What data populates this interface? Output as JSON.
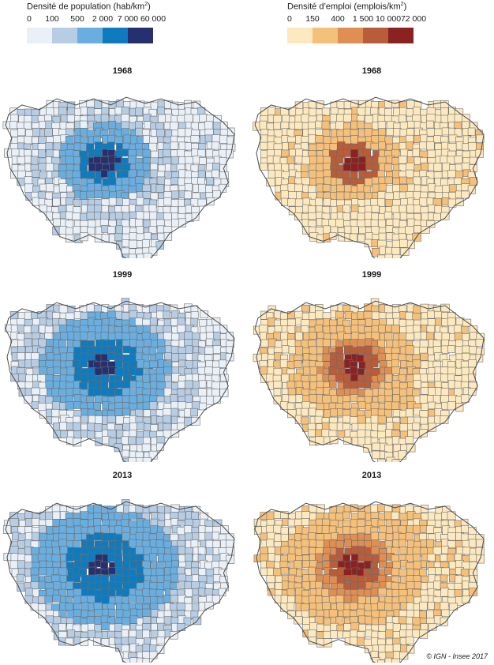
{
  "legends": {
    "population": {
      "title": "Densité de population (hab/km",
      "title_sup": "2",
      "title_end": ")",
      "ticks": [
        "0",
        "100",
        "500",
        "2 000",
        "7 000",
        "60 000"
      ],
      "colors": [
        "#e9f0f7",
        "#b7cde4",
        "#6aaee0",
        "#0f7bbf",
        "#27306f"
      ]
    },
    "emploi": {
      "title": "Densité d’emploi (emplois/km",
      "title_sup": "2",
      "title_end": ")",
      "ticks": [
        "0",
        "150",
        "400",
        "1 500",
        "10 000",
        "72 000"
      ],
      "colors": [
        "#fde9c0",
        "#f5c07a",
        "#df8f54",
        "#b85c3a",
        "#8a2222"
      ]
    }
  },
  "maps": {
    "pop_1968": {
      "year": "1968",
      "variable": "population"
    },
    "emp_1968": {
      "year": "1968",
      "variable": "emploi"
    },
    "pop_1999": {
      "year": "1999",
      "variable": "population"
    },
    "emp_1999": {
      "year": "1999",
      "variable": "emploi"
    },
    "pop_2013": {
      "year": "2013",
      "variable": "population"
    },
    "emp_2013": {
      "year": "2013",
      "variable": "emploi"
    }
  },
  "credit": "© IGN - Insee 2017"
}
